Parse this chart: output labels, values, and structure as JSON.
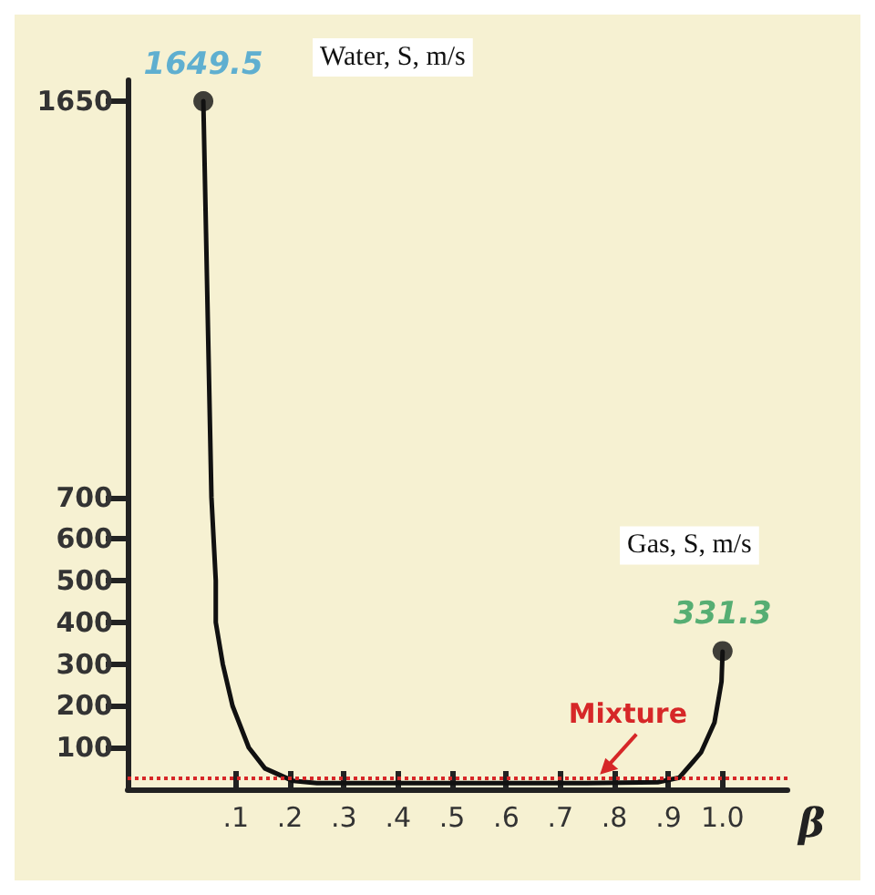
{
  "chart_data": {
    "type": "line",
    "xlabel": "β",
    "x": [
      0.04,
      0.055,
      0.063,
      0.063,
      0.076,
      0.094,
      0.124,
      0.154,
      0.206,
      0.25,
      0.5,
      0.75,
      0.88,
      0.92,
      0.96,
      0.985,
      0.998,
      1.0
    ],
    "series": [
      {
        "color": "#111111",
        "values": [
          1650,
          700,
          500,
          400,
          300,
          200,
          100,
          50,
          20,
          15,
          15,
          15,
          17,
          28,
          88,
          160,
          258,
          330
        ],
        "value_labels": [
          null,
          null,
          null,
          null,
          null,
          null,
          null,
          null,
          null,
          null,
          null,
          null,
          null,
          null,
          null,
          null,
          null,
          null
        ]
      },
      {
        "type": "scatter",
        "color": "#111111",
        "x": [
          0.04,
          1.0
        ],
        "values": [
          1649.5,
          331.3
        ],
        "value_labels": [
          "1649.5",
          "331.3"
        ]
      }
    ],
    "xlim": [
      -0.1,
      1.12
    ],
    "xticks": [
      {
        "value": 0.1,
        "label": ".1"
      },
      {
        "value": 0.2,
        "label": ".2"
      },
      {
        "value": 0.3,
        "label": ".3"
      },
      {
        "value": 0.4,
        "label": ".4"
      },
      {
        "value": 0.5,
        "label": ".5"
      },
      {
        "value": 0.6,
        "label": ".6"
      },
      {
        "value": 0.7,
        "label": ".7"
      },
      {
        "value": 0.8,
        "label": ".8"
      },
      {
        "value": 0.9,
        "label": ".9"
      },
      {
        "value": 1.0,
        "label": "1.0"
      }
    ],
    "ylim": [
      0,
      1700
    ],
    "yticks": [
      100,
      200,
      300,
      400,
      500,
      600,
      700,
      1650
    ],
    "ref_lines": [
      {
        "axis": "y",
        "value": 27,
        "label": "Mixture",
        "color": "#d62728",
        "line_style": "dotted"
      }
    ],
    "annotations": [
      "Water, S, m/s",
      "Gas, S, m/s"
    ],
    "line_style": "solid",
    "grid": false
  }
}
